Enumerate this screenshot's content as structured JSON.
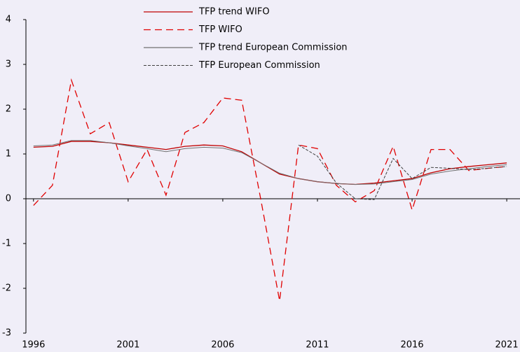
{
  "chart_data": {
    "type": "line",
    "x": [
      1996,
      1997,
      1998,
      1999,
      2000,
      2001,
      2002,
      2003,
      2004,
      2005,
      2006,
      2007,
      2008,
      2009,
      2010,
      2011,
      2012,
      2013,
      2014,
      2015,
      2016,
      2017,
      2018,
      2019,
      2020,
      2021
    ],
    "series": [
      {
        "name": "TFP trend WIFO",
        "color": "#c00000",
        "dash": "solid",
        "values": [
          1.15,
          1.17,
          1.28,
          1.28,
          1.25,
          1.2,
          1.15,
          1.1,
          1.17,
          1.2,
          1.18,
          1.05,
          0.8,
          0.55,
          0.45,
          0.38,
          0.34,
          0.32,
          0.35,
          0.4,
          0.45,
          0.58,
          0.67,
          0.72,
          0.76,
          0.8
        ]
      },
      {
        "name": "TFP WIFO",
        "color": "#e00000",
        "dash": "dashed",
        "values": [
          -0.15,
          0.3,
          2.65,
          1.45,
          1.7,
          0.38,
          1.1,
          0.08,
          1.48,
          1.7,
          2.25,
          2.2,
          0,
          -2.28,
          1.2,
          1.12,
          0.3,
          -0.07,
          0.18,
          1.17,
          -0.25,
          1.1,
          1.1,
          0.63,
          0.68,
          0.72
        ]
      },
      {
        "name": "TFP trend European Commission",
        "color": "#707070",
        "dash": "solid",
        "values": [
          1.18,
          1.2,
          1.3,
          1.3,
          1.25,
          1.18,
          1.12,
          1.05,
          1.12,
          1.15,
          1.13,
          1.03,
          0.8,
          0.57,
          0.45,
          0.38,
          0.34,
          0.32,
          0.33,
          0.38,
          0.43,
          0.55,
          0.62,
          0.67,
          0.72,
          0.76
        ]
      },
      {
        "name": "TFP European Commission",
        "color": "#404040",
        "dash": "dotted",
        "values": [
          null,
          null,
          null,
          null,
          null,
          null,
          null,
          null,
          null,
          null,
          null,
          null,
          null,
          null,
          1.2,
          0.95,
          0.35,
          0.0,
          -0.02,
          0.9,
          0.45,
          0.7,
          0.68,
          0.65,
          0.68,
          0.72
        ]
      }
    ],
    "xlim": [
      1995.6,
      2021.7
    ],
    "xticks": [
      1996,
      2001,
      2006,
      2011,
      2016,
      2021
    ],
    "ylim": [
      -3,
      4
    ],
    "yticks": [
      -3,
      -2,
      -1,
      0,
      1,
      2,
      3,
      4
    ]
  }
}
